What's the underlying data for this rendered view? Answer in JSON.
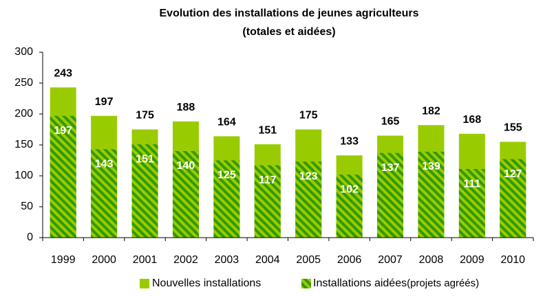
{
  "chart_data": {
    "type": "bar",
    "mode": "overlap",
    "title": [
      "Evolution des installations de jeunes agriculteurs",
      "(totales et aidées)"
    ],
    "categories": [
      "1999",
      "2000",
      "2001",
      "2002",
      "2003",
      "2004",
      "2005",
      "2006",
      "2007",
      "2008",
      "2009",
      "2010"
    ],
    "series": [
      {
        "name": "Nouvelles installations",
        "color": "#99cc00",
        "values": [
          243,
          197,
          175,
          188,
          164,
          151,
          175,
          133,
          165,
          182,
          168,
          155
        ]
      },
      {
        "name": "Installations aidées",
        "legend_note": "(projets agréés)",
        "color": "#339900",
        "hatch": "#99cc00",
        "values": [
          197,
          143,
          151,
          140,
          125,
          117,
          123,
          102,
          137,
          139,
          111,
          127
        ]
      }
    ],
    "ylim": [
      0,
      300
    ],
    "yticks": [
      0,
      50,
      100,
      150,
      200,
      250,
      300
    ],
    "grid": false,
    "legend": "bottom"
  }
}
